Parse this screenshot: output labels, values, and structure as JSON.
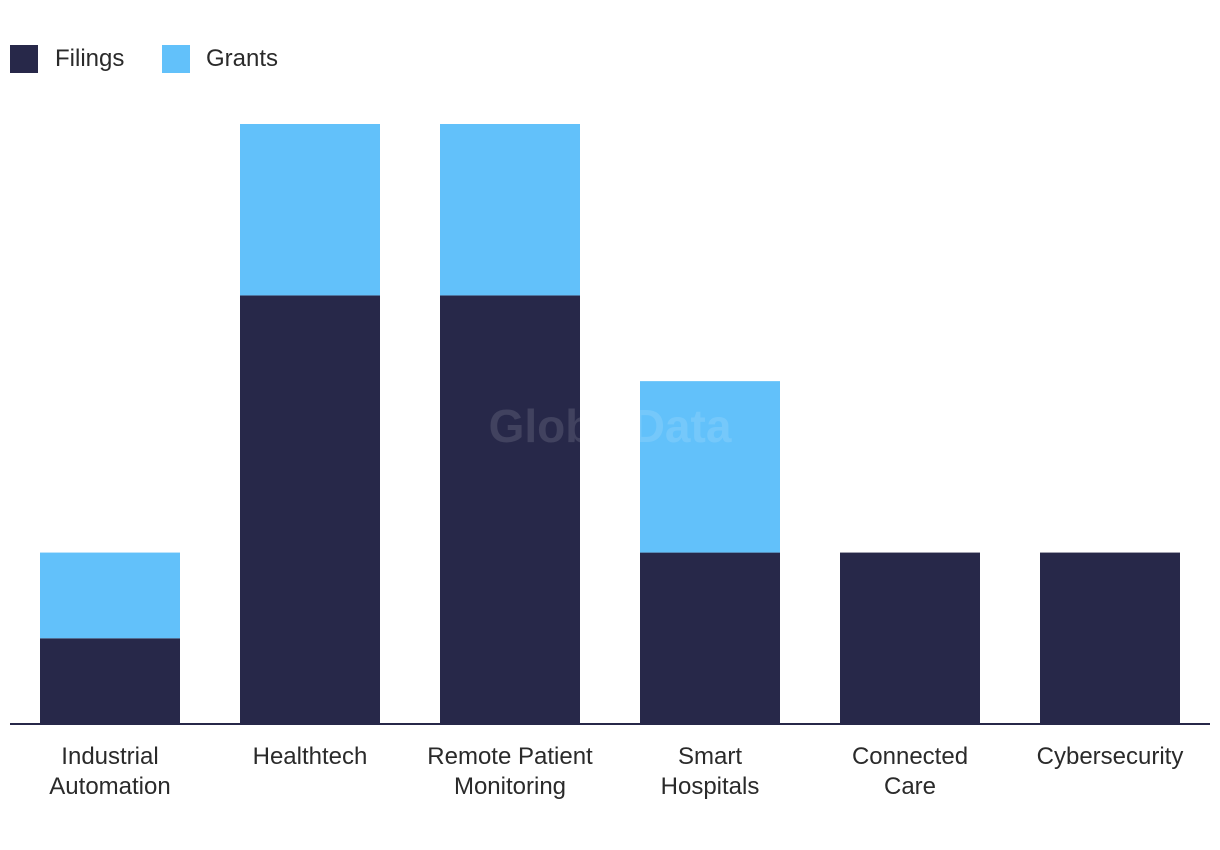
{
  "watermark": "GlobalData",
  "colors": {
    "filings": "#272849",
    "grants": "#62c1fa",
    "axis": "#272849",
    "text": "#2a2a2a"
  },
  "chart_data": {
    "type": "bar",
    "stacked": true,
    "title": "",
    "xlabel": "",
    "ylabel": "",
    "ylim": [
      0,
      7
    ],
    "grid": false,
    "legend_position": "top-left",
    "categories": [
      [
        "Industrial",
        "Automation"
      ],
      [
        "Healthtech"
      ],
      [
        "Remote Patient",
        "Monitoring"
      ],
      [
        "Smart",
        "Hospitals"
      ],
      [
        "Connected",
        "Care"
      ],
      [
        "Cybersecurity"
      ]
    ],
    "series": [
      {
        "name": "Filings",
        "values": [
          1,
          5,
          5,
          2,
          2,
          2
        ]
      },
      {
        "name": "Grants",
        "values": [
          1,
          2,
          2,
          2,
          0,
          0
        ]
      }
    ]
  }
}
